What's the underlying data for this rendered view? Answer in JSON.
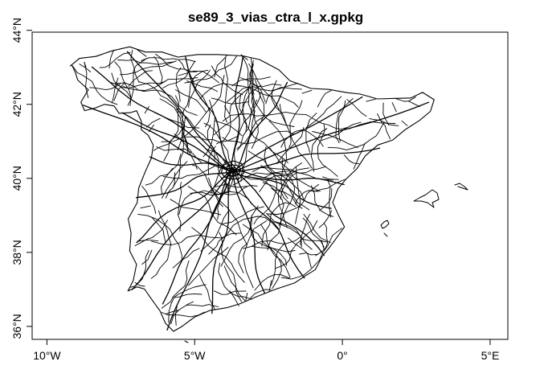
{
  "map": {
    "title": "se89_3_vias_ctra_l_x.gpkg",
    "line_color": "#000000",
    "frame_color": "#000000",
    "background": "#ffffff",
    "x_axis": {
      "range": [
        -10.5,
        5.6
      ],
      "ticks": [
        {
          "value": -10,
          "label": "10°W"
        },
        {
          "value": -5,
          "label": "5°W"
        },
        {
          "value": 0,
          "label": "0°"
        },
        {
          "value": 5,
          "label": "5°E"
        }
      ]
    },
    "y_axis": {
      "range": [
        35.65,
        43.95
      ],
      "ticks": [
        {
          "value": 36,
          "label": "36°N"
        },
        {
          "value": 38,
          "label": "38°N"
        },
        {
          "value": 40,
          "label": "40°N"
        },
        {
          "value": 42,
          "label": "42°N"
        },
        {
          "value": 44,
          "label": "44°N"
        }
      ]
    }
  }
}
